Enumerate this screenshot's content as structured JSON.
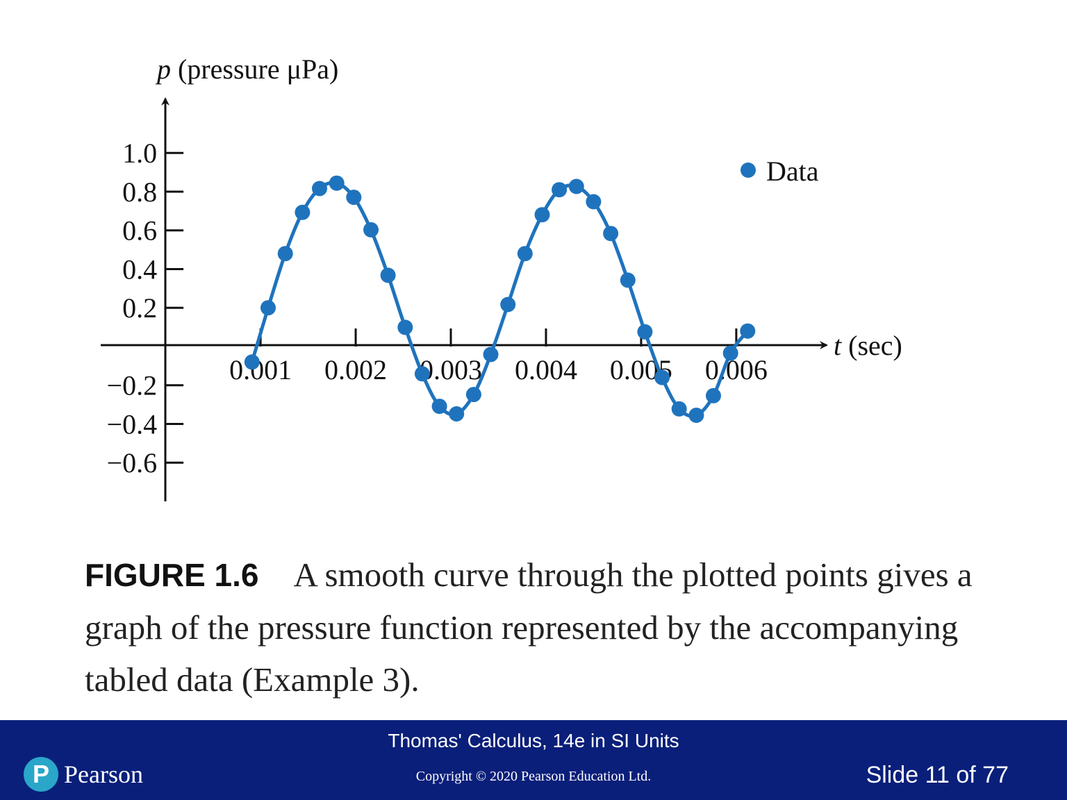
{
  "chart_data": {
    "type": "scatter",
    "ylabel_italic": "p",
    "ylabel_rest": " (pressure μPa)",
    "xlabel_italic": "t",
    "xlabel_rest": " (sec)",
    "xlim": [
      -0.00068,
      0.00695
    ],
    "ylim": [
      -0.8,
      1.13
    ],
    "x_ticks": [
      0.001,
      0.002,
      0.003,
      0.004,
      0.005,
      0.006
    ],
    "x_tick_labels": [
      "0.001",
      "0.002",
      "0.003",
      "0.004",
      "0.005",
      "0.006"
    ],
    "y_ticks": [
      1.0,
      0.8,
      0.6,
      0.4,
      0.2,
      -0.2,
      -0.4,
      -0.6
    ],
    "y_tick_labels": [
      "1.0",
      "0.8",
      "0.6",
      "0.4",
      "0.2",
      "−0.2",
      "−0.4",
      "−0.6"
    ],
    "grid": false,
    "legend": {
      "position": "top-right"
    },
    "colors": {
      "series": "#1f73bd",
      "axis": "#111111"
    },
    "series": [
      {
        "name": "Data",
        "x": [
          0.00091,
          0.00108,
          0.00126,
          0.00144,
          0.00162,
          0.0018,
          0.00198,
          0.00216,
          0.00234,
          0.00252,
          0.0027,
          0.00288,
          0.00306,
          0.00324,
          0.00342,
          0.0036,
          0.00378,
          0.00396,
          0.00414,
          0.00432,
          0.0045,
          0.00468,
          0.00486,
          0.00504,
          0.00522,
          0.0054,
          0.00558,
          0.00576,
          0.00594,
          0.00612
        ],
        "y": [
          -0.08,
          0.2,
          0.48,
          0.693,
          0.816,
          0.844,
          0.771,
          0.603,
          0.368,
          0.099,
          -0.141,
          -0.309,
          -0.348,
          -0.248,
          -0.041,
          0.217,
          0.48,
          0.681,
          0.81,
          0.827,
          0.748,
          0.584,
          0.343,
          0.076,
          -0.16,
          -0.322,
          -0.355,
          -0.254,
          -0.034,
          0.08
        ]
      }
    ]
  },
  "caption": {
    "label": "FIGURE 1.6",
    "text": "A smooth curve through the plotted points gives a graph of the pressure function represented by the accompanying tabled data (Example 3)."
  },
  "footer": {
    "book_title": "Thomas' Calculus, 14e in SI Units",
    "copyright": "Copyright © 2020 Pearson Education Ltd.",
    "slide": "Slide 11 of 77",
    "logo_mark": "P",
    "logo_text": "Pearson"
  }
}
